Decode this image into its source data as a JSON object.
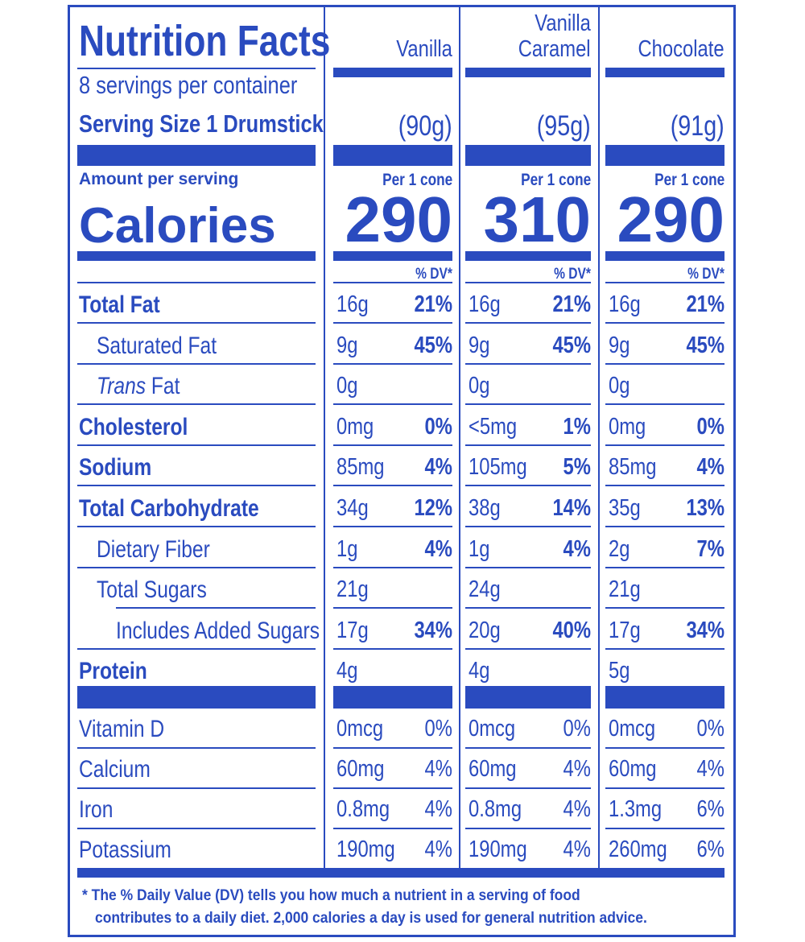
{
  "header": {
    "title": "Nutrition Facts",
    "servings": "8 servings per container",
    "serving_size_label": "Serving Size 1 Drumstick",
    "amount_per_serving": "Amount per serving",
    "calories_label": "Calories",
    "dv_note_label": "% DV*"
  },
  "products": [
    {
      "name_line1": "",
      "name_line2": "Vanilla",
      "serving_size": "(90g)",
      "per_label": "Per 1 cone",
      "calories": "290"
    },
    {
      "name_line1": "Vanilla",
      "name_line2": "Caramel",
      "serving_size": "(95g)",
      "per_label": "Per 1 cone",
      "calories": "310"
    },
    {
      "name_line1": "",
      "name_line2": "Chocolate",
      "serving_size": "(91g)",
      "per_label": "Per 1 cone",
      "calories": "290"
    }
  ],
  "nutrients": [
    {
      "label": "Total Fat",
      "style": "bold",
      "values": [
        [
          "16g",
          "21%"
        ],
        [
          "16g",
          "21%"
        ],
        [
          "16g",
          "21%"
        ]
      ]
    },
    {
      "label": "Saturated Fat",
      "style": "indent1",
      "values": [
        [
          "9g",
          "45%"
        ],
        [
          "9g",
          "45%"
        ],
        [
          "9g",
          "45%"
        ]
      ]
    },
    {
      "label_italic": "Trans",
      "label": " Fat",
      "style": "indent1",
      "values": [
        [
          "0g",
          ""
        ],
        [
          "0g",
          ""
        ],
        [
          "0g",
          ""
        ]
      ]
    },
    {
      "label": "Cholesterol",
      "style": "bold",
      "values": [
        [
          "0mg",
          "0%"
        ],
        [
          "<5mg",
          "1%"
        ],
        [
          "0mg",
          "0%"
        ]
      ]
    },
    {
      "label": "Sodium",
      "style": "bold",
      "values": [
        [
          "85mg",
          "4%"
        ],
        [
          "105mg",
          "5%"
        ],
        [
          "85mg",
          "4%"
        ]
      ]
    },
    {
      "label": "Total Carbohydrate",
      "style": "bold",
      "values": [
        [
          "34g",
          "12%"
        ],
        [
          "38g",
          "14%"
        ],
        [
          "35g",
          "13%"
        ]
      ]
    },
    {
      "label": "Dietary Fiber",
      "style": "indent1",
      "values": [
        [
          "1g",
          "4%"
        ],
        [
          "1g",
          "4%"
        ],
        [
          "2g",
          "7%"
        ]
      ]
    },
    {
      "label": "Total Sugars",
      "style": "indent1",
      "values": [
        [
          "21g",
          ""
        ],
        [
          "24g",
          ""
        ],
        [
          "21g",
          ""
        ]
      ]
    },
    {
      "label": "Includes Added Sugars",
      "style": "indent2",
      "values": [
        [
          "17g",
          "34%"
        ],
        [
          "20g",
          "40%"
        ],
        [
          "17g",
          "34%"
        ]
      ]
    },
    {
      "label": "Protein",
      "style": "bold",
      "values": [
        [
          "4g",
          ""
        ],
        [
          "4g",
          ""
        ],
        [
          "5g",
          ""
        ]
      ]
    }
  ],
  "vitamins": [
    {
      "label": "Vitamin D",
      "values": [
        [
          "0mcg",
          "0%"
        ],
        [
          "0mcg",
          "0%"
        ],
        [
          "0mcg",
          "0%"
        ]
      ]
    },
    {
      "label": "Calcium",
      "values": [
        [
          "60mg",
          "4%"
        ],
        [
          "60mg",
          "4%"
        ],
        [
          "60mg",
          "4%"
        ]
      ]
    },
    {
      "label": "Iron",
      "values": [
        [
          "0.8mg",
          "4%"
        ],
        [
          "0.8mg",
          "4%"
        ],
        [
          "1.3mg",
          "6%"
        ]
      ]
    },
    {
      "label": "Potassium",
      "values": [
        [
          "190mg",
          "4%"
        ],
        [
          "190mg",
          "4%"
        ],
        [
          "260mg",
          "6%"
        ]
      ]
    }
  ],
  "footnote": {
    "line1": "* The % Daily Value (DV) tells you how much a nutrient in a serving of food",
    "line2": "contributes to a daily diet. 2,000 calories a day is used for general nutrition advice."
  },
  "colors": {
    "ink": "#2a4bbf",
    "background": "#ffffff"
  }
}
